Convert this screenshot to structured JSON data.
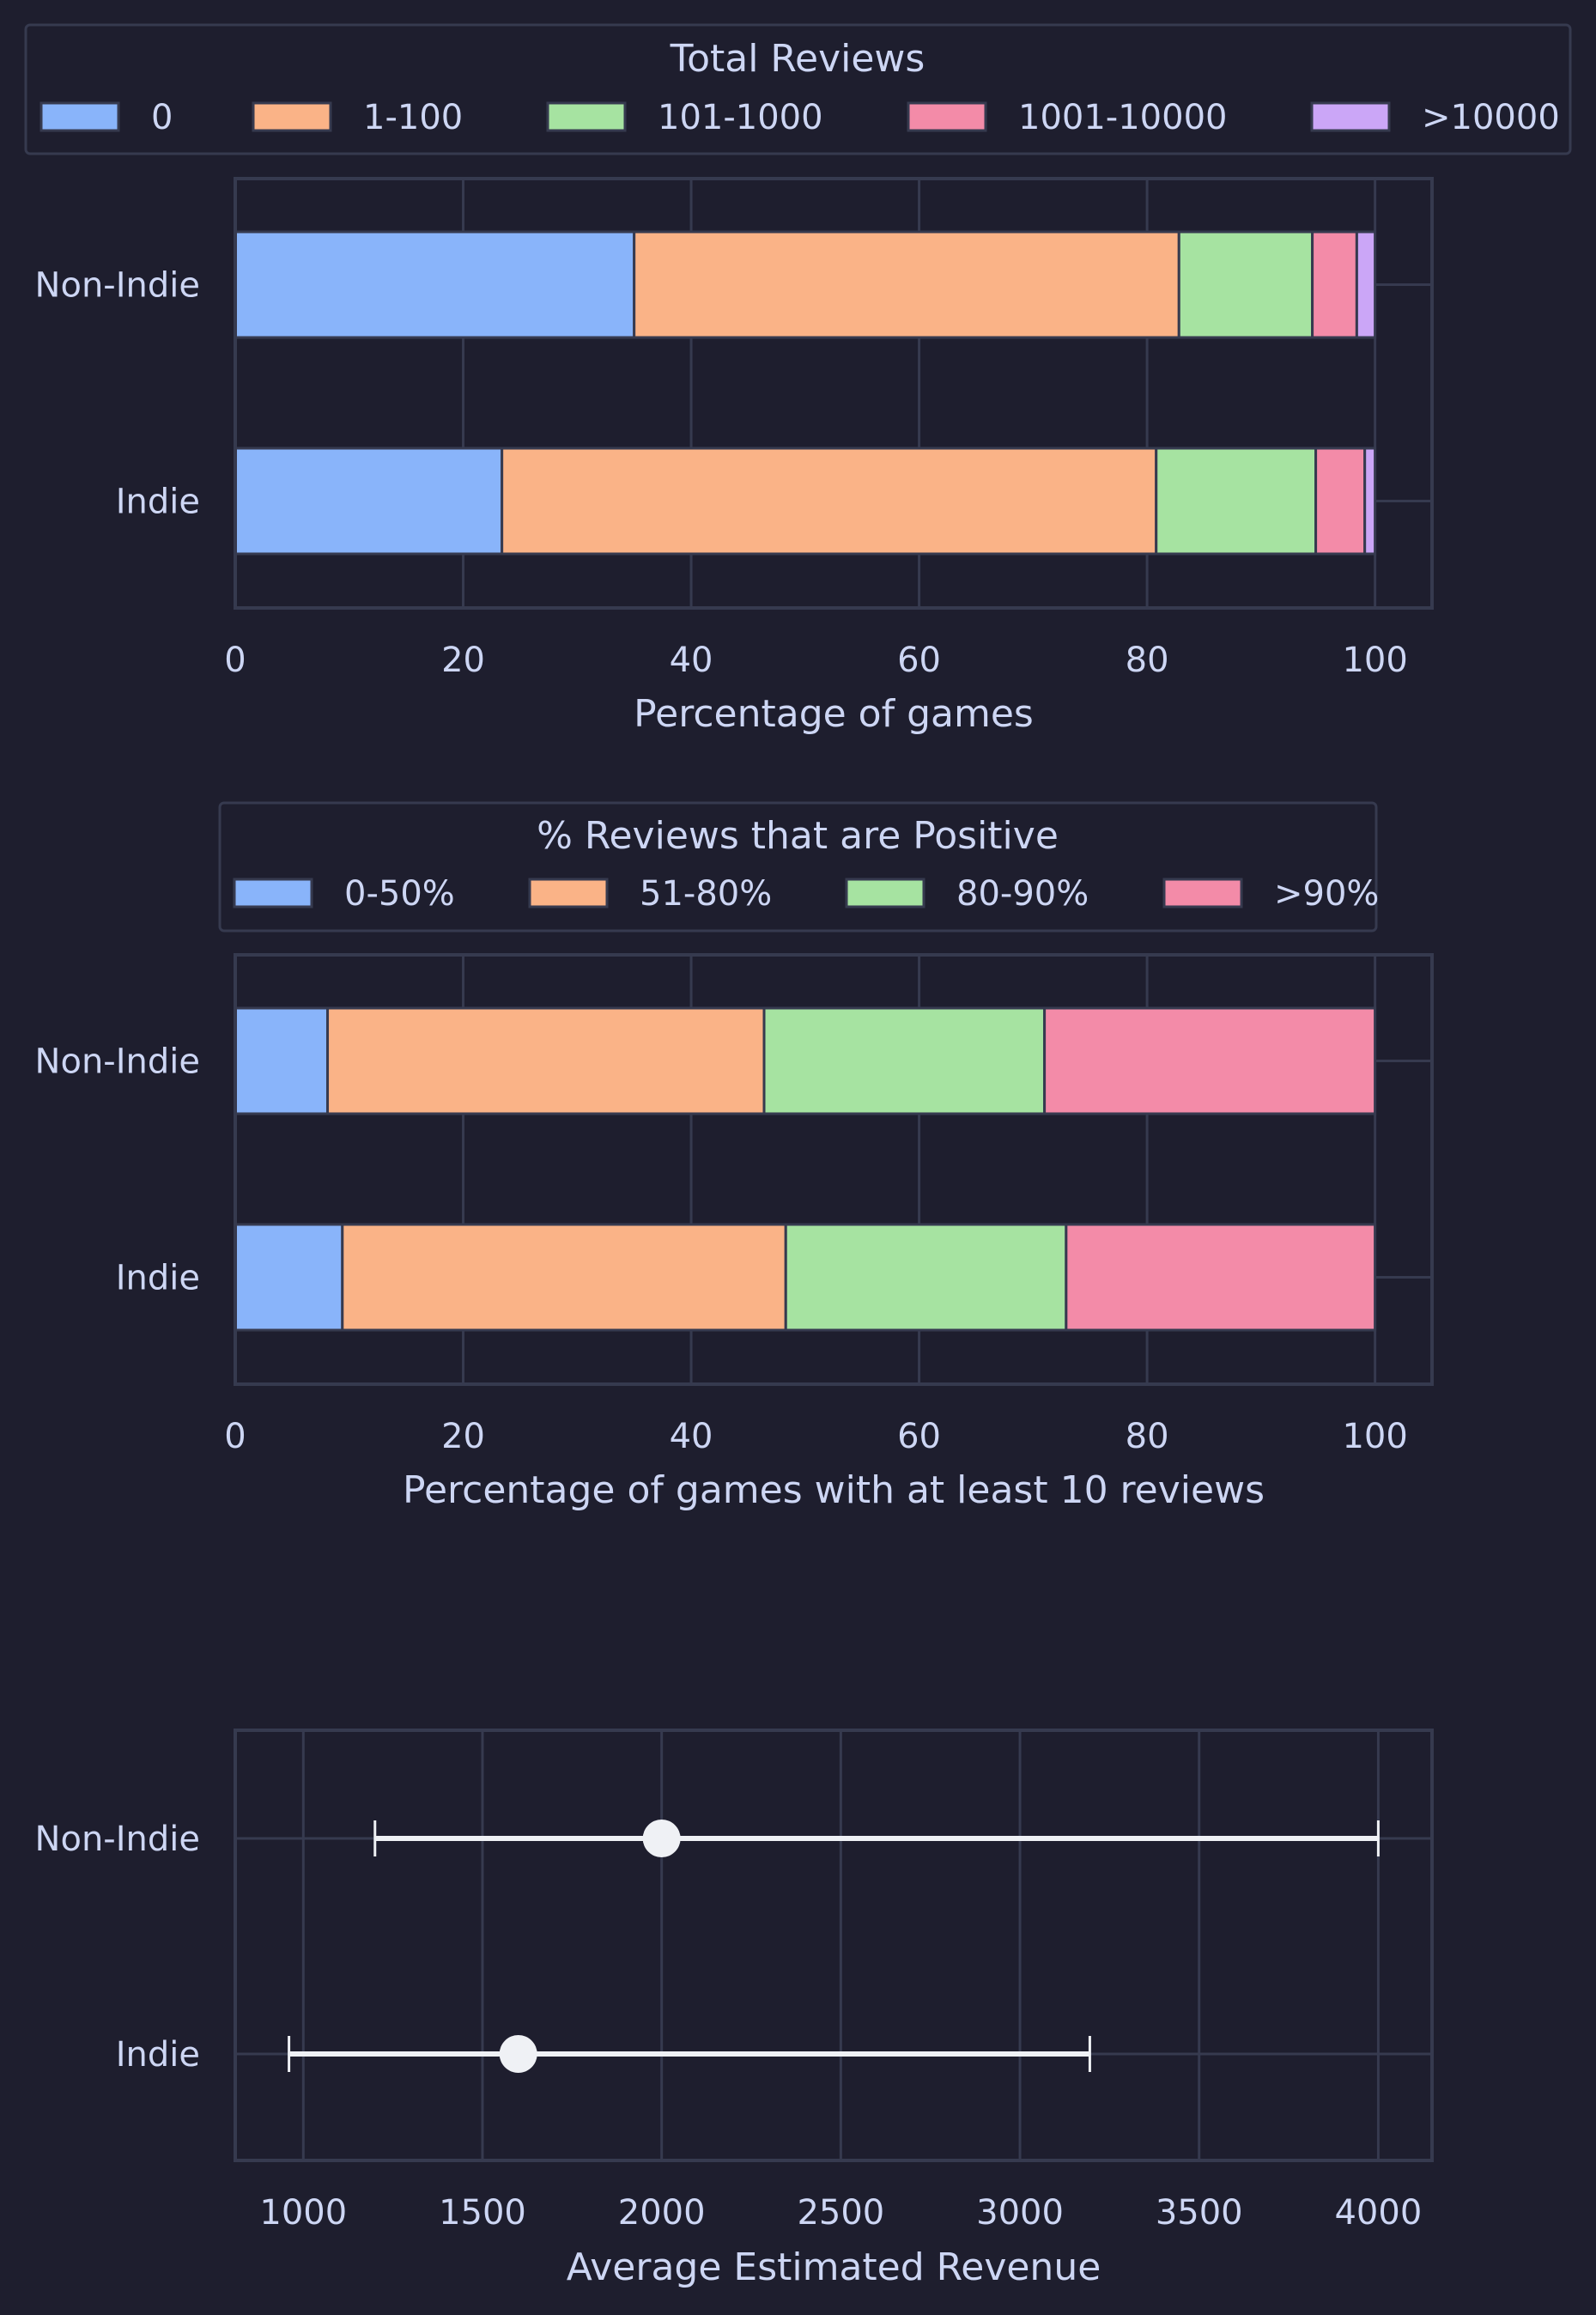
{
  "chart_data": [
    {
      "type": "bar",
      "orientation": "horizontal",
      "stacked": true,
      "categories": [
        "Non-Indie",
        "Indie"
      ],
      "legend_title": "Total Reviews",
      "legend_position": "top",
      "series": [
        {
          "name": "0",
          "color": "#89b4fa",
          "values": [
            35.0,
            23.4
          ]
        },
        {
          "name": "1-100",
          "color": "#fab387",
          "values": [
            47.8,
            57.4
          ]
        },
        {
          "name": "101-1000",
          "color": "#a6e3a1",
          "values": [
            11.7,
            14.0
          ]
        },
        {
          "name": "1001-10000",
          "color": "#f38ba8",
          "values": [
            3.9,
            4.3
          ]
        },
        {
          "name": ">10000",
          "color": "#cba6f7",
          "values": [
            1.6,
            0.9
          ]
        }
      ],
      "xlabel": "Percentage of games",
      "ylabel": "",
      "xlim": [
        0,
        105
      ],
      "xticks": [
        "0",
        "20",
        "40",
        "60",
        "80",
        "100"
      ],
      "xtick_values": [
        0,
        20,
        40,
        60,
        80,
        100
      ],
      "grid": true
    },
    {
      "type": "bar",
      "orientation": "horizontal",
      "stacked": true,
      "categories": [
        "Non-Indie",
        "Indie"
      ],
      "legend_title": "% Reviews that are Positive",
      "legend_position": "top",
      "series": [
        {
          "name": "0-50%",
          "color": "#89b4fa",
          "values": [
            8.1,
            9.4
          ]
        },
        {
          "name": "51-80%",
          "color": "#fab387",
          "values": [
            38.3,
            38.9
          ]
        },
        {
          "name": "80-90%",
          "color": "#a6e3a1",
          "values": [
            24.6,
            24.6
          ]
        },
        {
          "name": ">90%",
          "color": "#f38ba8",
          "values": [
            29.0,
            27.1
          ]
        }
      ],
      "xlabel": "Percentage of games with at least 10 reviews",
      "ylabel": "",
      "xlim": [
        0,
        105
      ],
      "xticks": [
        "0",
        "20",
        "40",
        "60",
        "80",
        "100"
      ],
      "xtick_values": [
        0,
        20,
        40,
        60,
        80,
        100
      ],
      "grid": true
    },
    {
      "type": "scatter",
      "subtype": "point-with-errorbar",
      "categories": [
        "Non-Indie",
        "Indie"
      ],
      "points": [
        {
          "category": "Non-Indie",
          "value": 2000,
          "lower": 1200,
          "upper": 4000
        },
        {
          "category": "Indie",
          "value": 1600,
          "lower": 960,
          "upper": 3195
        }
      ],
      "marker_color": "#eff1f5",
      "xlabel": "Average Estimated Revenue",
      "ylabel": "",
      "xlim": [
        810,
        4150
      ],
      "xticks": [
        "1000",
        "1500",
        "2000",
        "2500",
        "3000",
        "3500",
        "4000"
      ],
      "xtick_values": [
        1000,
        1500,
        2000,
        2500,
        3000,
        3500,
        4000
      ],
      "grid": true
    }
  ]
}
